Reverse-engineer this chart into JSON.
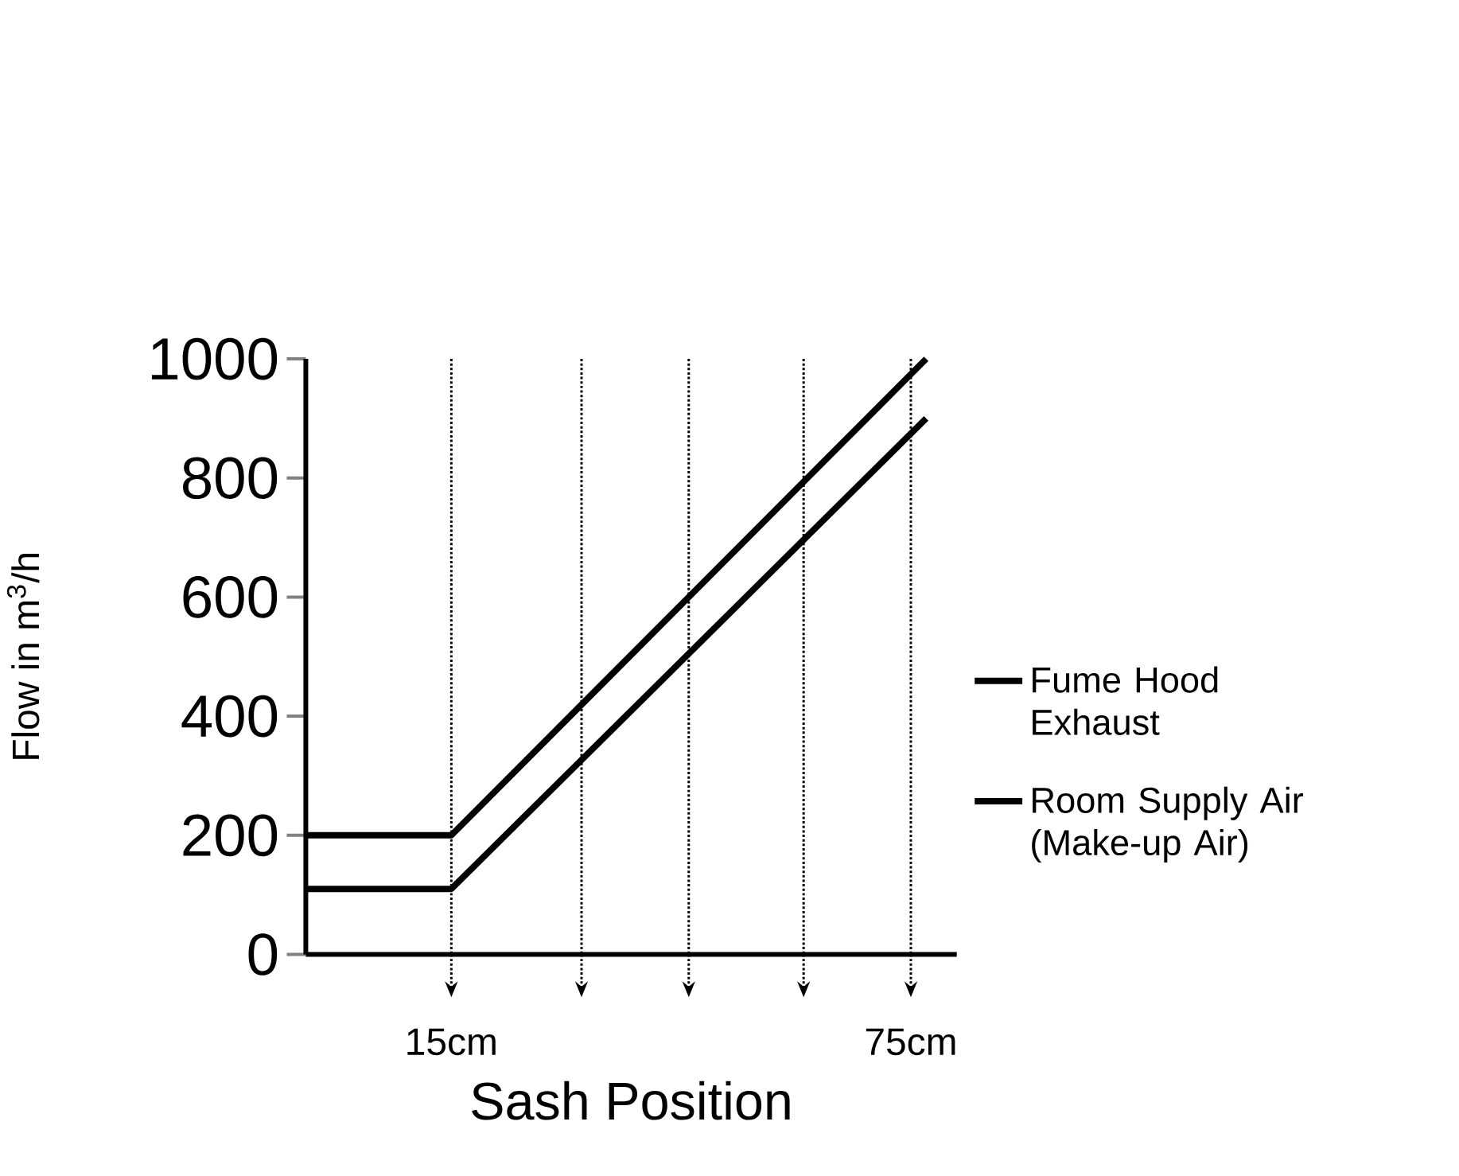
{
  "chart_data": {
    "type": "line",
    "xlabel": "Sash Position",
    "ylabel": "Flow in m$^{3}$/h",
    "xlim": [
      -4,
      81
    ],
    "ylim": [
      0,
      1000
    ],
    "xticks": [
      {
        "value": 15,
        "label": "15cm"
      },
      {
        "value": 75,
        "label": "75cm"
      }
    ],
    "yticks": [
      0,
      200,
      400,
      600,
      800,
      1000
    ],
    "series": [
      {
        "name": "Fume Hood Exhaust",
        "color": "#000000",
        "x": [
          -4,
          15,
          77
        ],
        "values": [
          200,
          200,
          1000
        ]
      },
      {
        "name": "Room Supply Air (Make-up Air)",
        "color": "#000000",
        "x": [
          -4,
          15,
          77
        ],
        "values": [
          110,
          110,
          900
        ]
      }
    ],
    "ref_lines": [
      {
        "axis": "x",
        "value": 15,
        "line_style": "dotted"
      },
      {
        "axis": "x",
        "value": 32,
        "line_style": "dotted"
      },
      {
        "axis": "x",
        "value": 46,
        "line_style": "dotted"
      },
      {
        "axis": "x",
        "value": 61,
        "line_style": "dotted"
      },
      {
        "axis": "x",
        "value": 75,
        "line_style": "dotted"
      }
    ],
    "legend": "right",
    "line_style": "solid",
    "grid": false
  }
}
